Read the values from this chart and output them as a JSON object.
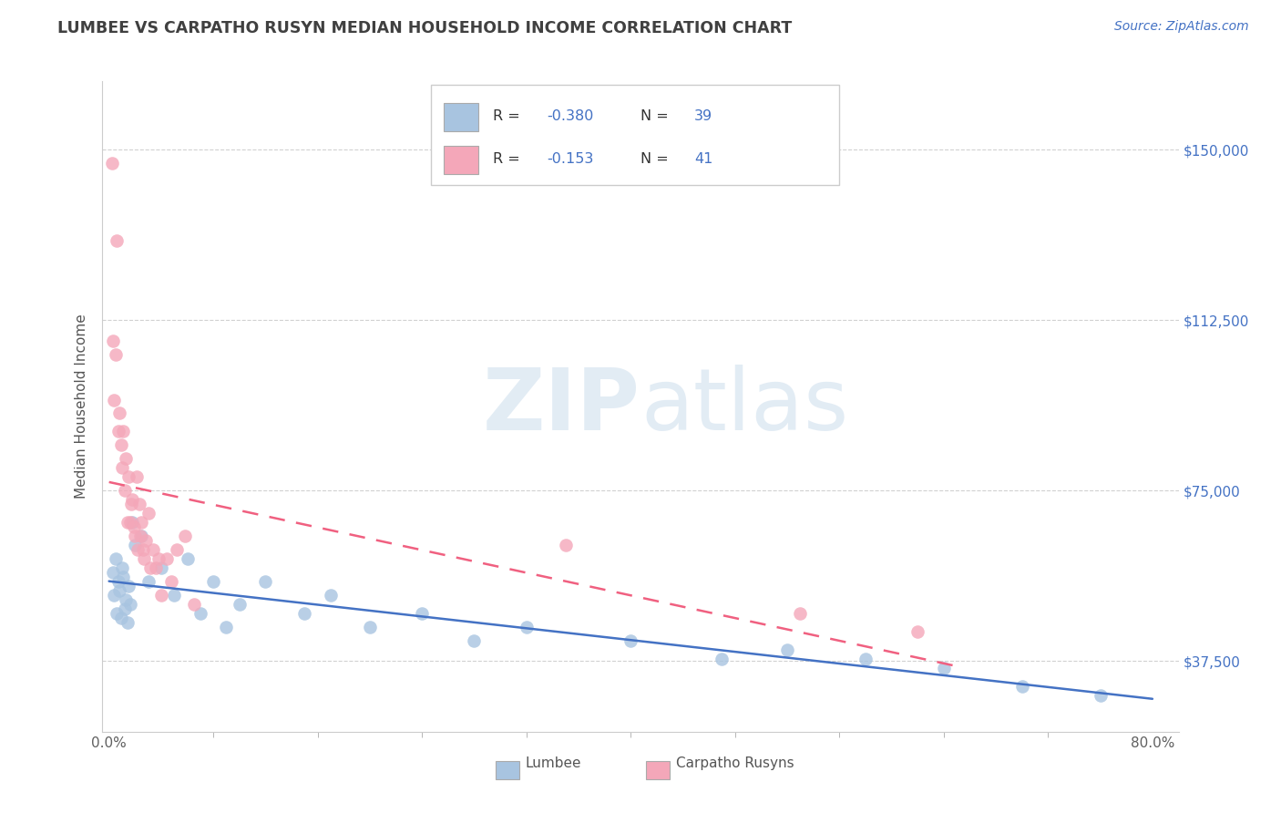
{
  "title": "LUMBEE VS CARPATHO RUSYN MEDIAN HOUSEHOLD INCOME CORRELATION CHART",
  "source": "Source: ZipAtlas.com",
  "ylabel": "Median Household Income",
  "xlim": [
    -0.005,
    0.82
  ],
  "ylim": [
    22000,
    165000
  ],
  "yticks": [
    37500,
    75000,
    112500,
    150000
  ],
  "ytick_labels": [
    "$37,500",
    "$75,000",
    "$112,500",
    "$150,000"
  ],
  "xtick_left_label": "0.0%",
  "xtick_right_label": "80.0%",
  "background_color": "#ffffff",
  "grid_color": "#cccccc",
  "title_color": "#404040",
  "source_color": "#4472c4",
  "lumbee_color": "#a8c4e0",
  "carpatho_color": "#f4a7b9",
  "lumbee_line_color": "#4472c4",
  "carpatho_line_color": "#f06080",
  "watermark_color": "#d0e0ee",
  "lumbee_R": -0.38,
  "lumbee_N": 39,
  "carpatho_R": -0.153,
  "carpatho_N": 41,
  "lumbee_x": [
    0.003,
    0.004,
    0.005,
    0.006,
    0.007,
    0.008,
    0.009,
    0.01,
    0.011,
    0.012,
    0.013,
    0.014,
    0.015,
    0.016,
    0.018,
    0.02,
    0.025,
    0.03,
    0.04,
    0.05,
    0.06,
    0.07,
    0.08,
    0.09,
    0.1,
    0.12,
    0.15,
    0.17,
    0.2,
    0.24,
    0.28,
    0.32,
    0.4,
    0.47,
    0.52,
    0.58,
    0.64,
    0.7,
    0.76
  ],
  "lumbee_y": [
    57000,
    52000,
    60000,
    48000,
    55000,
    53000,
    47000,
    58000,
    56000,
    49000,
    51000,
    46000,
    54000,
    50000,
    68000,
    63000,
    65000,
    55000,
    58000,
    52000,
    60000,
    48000,
    55000,
    45000,
    50000,
    55000,
    48000,
    52000,
    45000,
    48000,
    42000,
    45000,
    42000,
    38000,
    40000,
    38000,
    36000,
    32000,
    30000
  ],
  "carpatho_x": [
    0.002,
    0.003,
    0.004,
    0.005,
    0.006,
    0.007,
    0.008,
    0.009,
    0.01,
    0.011,
    0.012,
    0.013,
    0.014,
    0.015,
    0.016,
    0.017,
    0.018,
    0.019,
    0.02,
    0.021,
    0.022,
    0.023,
    0.024,
    0.025,
    0.026,
    0.027,
    0.028,
    0.03,
    0.032,
    0.034,
    0.036,
    0.038,
    0.04,
    0.044,
    0.048,
    0.052,
    0.058,
    0.065,
    0.35,
    0.53,
    0.62
  ],
  "carpatho_y": [
    147000,
    108000,
    95000,
    105000,
    130000,
    88000,
    92000,
    85000,
    80000,
    88000,
    75000,
    82000,
    68000,
    78000,
    68000,
    72000,
    73000,
    67000,
    65000,
    78000,
    62000,
    72000,
    65000,
    68000,
    62000,
    60000,
    64000,
    70000,
    58000,
    62000,
    58000,
    60000,
    52000,
    60000,
    55000,
    62000,
    65000,
    50000,
    63000,
    48000,
    44000
  ]
}
